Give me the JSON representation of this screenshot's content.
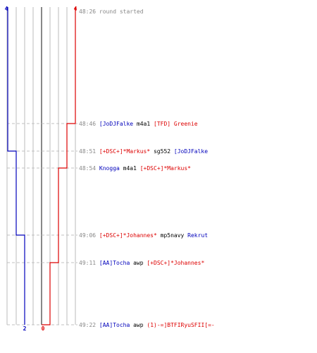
{
  "colors": {
    "blue_team": "#0000bb",
    "red_team": "#dd0000",
    "neutral_text": "#000000",
    "time_text": "#888888",
    "grid": "#bbbbbb",
    "center": "#555555",
    "dash": "#c0c0c0"
  },
  "counts": {
    "blue_start": "4",
    "red_start": "4",
    "blue_end": "2",
    "red_end": "0"
  },
  "chart_data": {
    "type": "step",
    "series": [
      {
        "team": "blue",
        "values": [
          4,
          4,
          3,
          3,
          2,
          2,
          2
        ]
      },
      {
        "team": "red",
        "values": [
          4,
          3,
          3,
          2,
          2,
          1,
          0
        ]
      }
    ],
    "range": [
      0,
      4
    ]
  },
  "events": [
    {
      "time": "48:26",
      "parts": [
        {
          "text": "round started",
          "team": "time"
        }
      ]
    },
    {
      "time": "48:46",
      "parts": [
        {
          "text": "[JoDJFalke",
          "team": "blue"
        },
        {
          "text": " m4a1 ",
          "team": "neutral"
        },
        {
          "text": "[TFD] Greenie",
          "team": "red"
        }
      ]
    },
    {
      "time": "48:51",
      "parts": [
        {
          "text": "[+DSC+]*Markus*",
          "team": "red"
        },
        {
          "text": " sg552 ",
          "team": "neutral"
        },
        {
          "text": "[JoDJFalke",
          "team": "blue"
        }
      ]
    },
    {
      "time": "48:54",
      "parts": [
        {
          "text": "Knogga",
          "team": "blue"
        },
        {
          "text": " m4a1 ",
          "team": "neutral"
        },
        {
          "text": "[+DSC+]*Markus*",
          "team": "red"
        }
      ]
    },
    {
      "time": "49:06",
      "parts": [
        {
          "text": "[+DSC+]*Johannes*",
          "team": "red"
        },
        {
          "text": " mp5navy ",
          "team": "neutral"
        },
        {
          "text": "Rekrut",
          "team": "blue"
        }
      ]
    },
    {
      "time": "49:11",
      "parts": [
        {
          "text": "[AA]Tocha",
          "team": "blue"
        },
        {
          "text": " awp ",
          "team": "neutral"
        },
        {
          "text": "[+DSC+]*Johannes*",
          "team": "red"
        }
      ]
    },
    {
      "time": "49:22",
      "parts": [
        {
          "text": "[AA]Tocha",
          "team": "blue"
        },
        {
          "text": " awp ",
          "team": "neutral"
        },
        {
          "text": "(1)-=]BTFIRyuSFII[=-",
          "team": "red"
        }
      ]
    }
  ]
}
